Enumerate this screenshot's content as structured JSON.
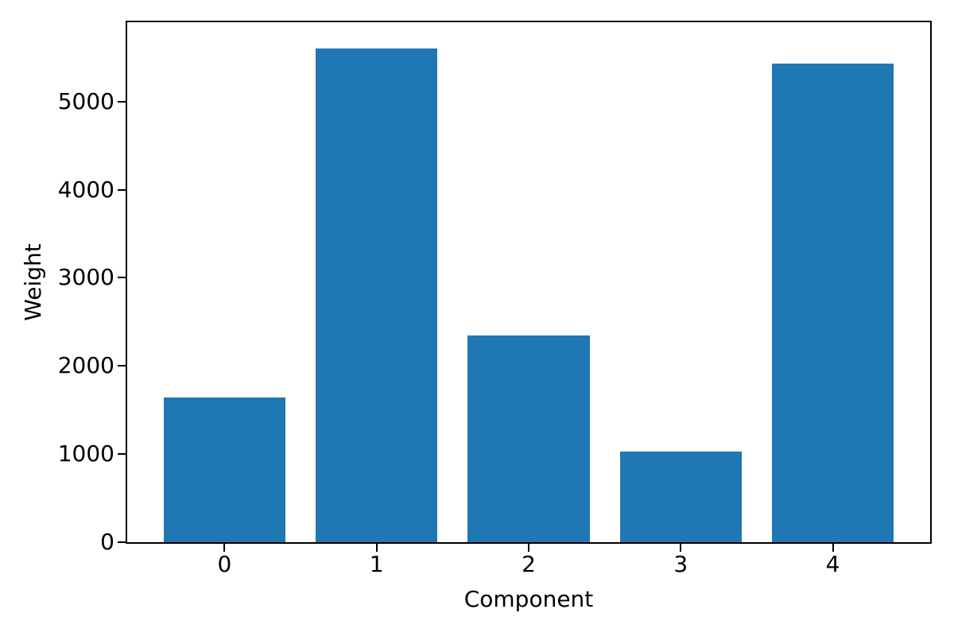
{
  "chart_data": {
    "type": "bar",
    "title": "",
    "xlabel": "Component",
    "ylabel": "Weight",
    "categories": [
      "0",
      "1",
      "2",
      "3",
      "4"
    ],
    "values": [
      1640,
      5600,
      2345,
      1030,
      5430
    ],
    "ylim": [
      0,
      5900
    ],
    "yticks": [
      0,
      1000,
      2000,
      3000,
      4000,
      5000
    ],
    "xlim": [
      -0.64,
      4.64
    ],
    "bar_width": 0.8,
    "bar_color": "#1f77b4",
    "axis_color": "#000000",
    "text_color": "#000000",
    "grid": false,
    "legend": "none"
  }
}
